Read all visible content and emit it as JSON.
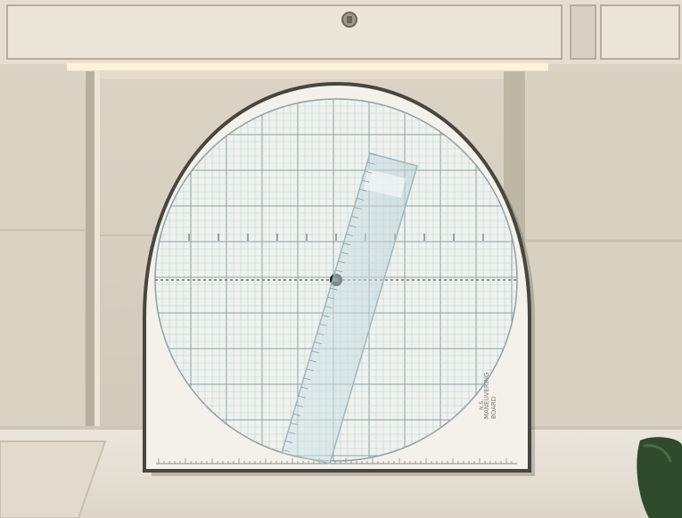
{
  "scene": {
    "board": {
      "right_label_lines": [
        "MANEUVERING",
        "BOARD",
        "N.S."
      ],
      "left_label": "",
      "ruler_label": ""
    }
  },
  "colors": {
    "wall": "#d8d0c1",
    "shelf": "#e7e0d4",
    "board_face": "#f3f1ea",
    "board_edge": "#4a4a44",
    "grid_line": "#b7c6c7",
    "grid_major": "#8ea0a3",
    "ruler": "#cfe0e6",
    "light": "#fff7de",
    "desk": "#e9e4db",
    "bag": "#2e4a2b"
  }
}
